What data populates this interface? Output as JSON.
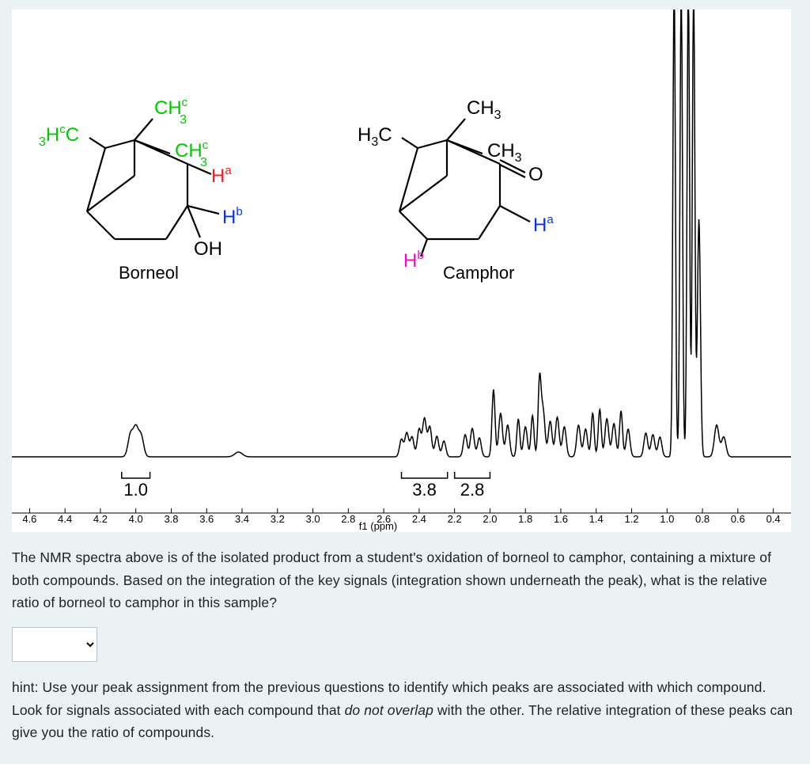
{
  "colors": {
    "page_bg": "#eaf2f3",
    "panel_bg": "#ffffff",
    "text": "#222222",
    "black": "#000000",
    "green": "#00c800",
    "red": "#ff1a1a",
    "blue": "#0033ff",
    "magenta": "#ff00cc"
  },
  "structures": {
    "borneol": {
      "name": "Borneol",
      "labels": {
        "ch3_c_top": {
          "text": "CH",
          "sup": "c",
          "sub": "3",
          "color": "green"
        },
        "ch3_c_mid": {
          "text": "CH",
          "sup": "c",
          "sub": "3",
          "color": "green"
        },
        "h3cc_left": {
          "pre_sub": "3",
          "text": "H",
          "sup": "c",
          "post": "C",
          "color": "green"
        },
        "ha": {
          "text": "H",
          "sup": "a",
          "color": "red"
        },
        "hb": {
          "text": "H",
          "sup": "b",
          "color": "blue"
        },
        "oh": {
          "text": "OH",
          "color": "black"
        }
      }
    },
    "camphor": {
      "name": "Camphor",
      "labels": {
        "ch3_top": {
          "text": "CH",
          "sub": "3",
          "color": "black"
        },
        "ch3_mid": {
          "text": "CH",
          "sub": "3",
          "color": "black"
        },
        "h3c_left": {
          "text": "H",
          "pre_sub": "3",
          "post": "C",
          "color": "black"
        },
        "o": {
          "text": "O",
          "color": "black"
        },
        "ha": {
          "text": "H",
          "sup": "a",
          "color": "blue"
        },
        "hb": {
          "text": "H",
          "sup": "b",
          "color": "magenta"
        }
      }
    }
  },
  "spectrum": {
    "xlabel": "f1 (ppm)",
    "xlim": [
      4.7,
      0.3
    ],
    "ticks": [
      4.6,
      4.4,
      4.2,
      4.0,
      3.8,
      3.6,
      3.4,
      3.2,
      3.0,
      2.8,
      2.6,
      2.4,
      2.2,
      2.0,
      1.8,
      1.6,
      1.4,
      1.2,
      1.0,
      0.8,
      0.6,
      0.4
    ],
    "axis_fontsize": 13,
    "integrations": [
      {
        "ppm_center": 4.0,
        "ppm_width": 0.16,
        "label": "1.0"
      },
      {
        "ppm_center": 2.37,
        "ppm_width": 0.26,
        "label": "3.8"
      },
      {
        "ppm_center": 2.1,
        "ppm_width": 0.2,
        "label": "2.8"
      }
    ],
    "integration_fontsize": 22,
    "baseline_y": 565,
    "spectrum_stroke_width": 1.5
  },
  "question": {
    "para": "The NMR spectra above is of the isolated product from a student's oxidation of borneol to camphor, containing a mixture of both compounds. Based on the integration of the key signals (integration shown underneath the peak), what is the relative ratio of borneol to camphor in this sample?"
  },
  "hint": {
    "prefix": "hint: Use your peak assignment from the previous questions to identify which peaks are associated with which compound. Look for signals associated with each compound that ",
    "italic": "do not overlap",
    "suffix": " with the other. The relative integration of these peaks can give you the ratio of compounds."
  },
  "select": {
    "placeholder": "",
    "options": []
  }
}
